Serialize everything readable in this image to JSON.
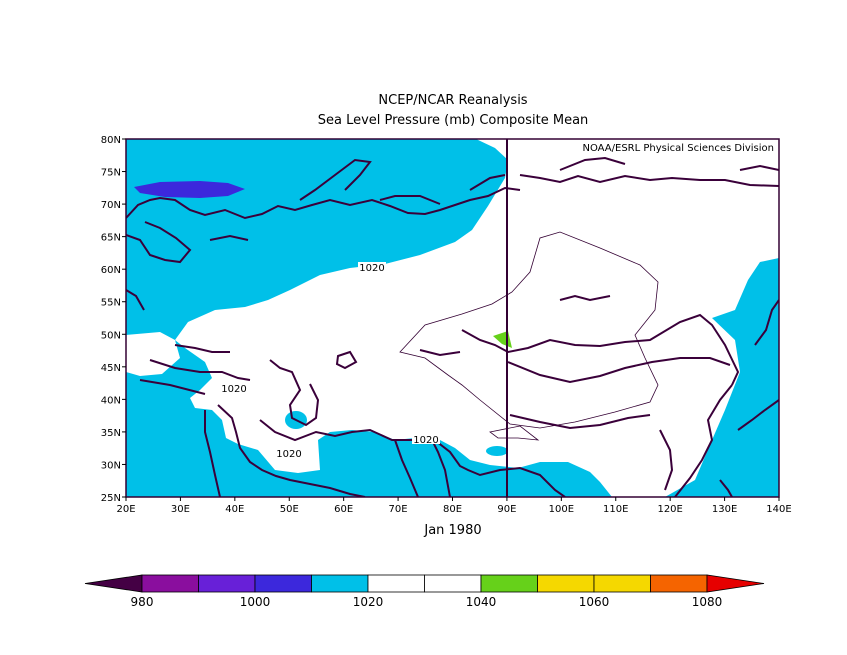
{
  "title": "NCEP/NCAR Reanalysis",
  "subtitle": "Sea Level Pressure (mb) Composite Mean",
  "credit": "NOAA/ESRL Physical Sciences Division",
  "period_label": "Jan 1980",
  "map": {
    "lon_range": [
      20,
      140
    ],
    "lat_range": [
      25,
      80
    ],
    "lon_ticks": [
      "20E",
      "30E",
      "40E",
      "50E",
      "60E",
      "70E",
      "80E",
      "90E",
      "100E",
      "110E",
      "120E",
      "130E",
      "140E"
    ],
    "lat_ticks": [
      "25N",
      "30N",
      "35N",
      "40N",
      "45N",
      "50N",
      "55N",
      "60N",
      "65N",
      "70N",
      "75N",
      "80N"
    ],
    "contour_labels": [
      "1020",
      "1020",
      "1020",
      "1020"
    ],
    "colors": {
      "fill_1010_1020": "#00c0e8",
      "fill_1020_1040": "#ffffff",
      "fill_1040_1050": "#66d11a",
      "fill_1000_1010": "#3c28dc",
      "coast": "#3a003a",
      "frame": "#330033"
    }
  },
  "colorbar": {
    "labels": [
      "980",
      "1000",
      "1020",
      "1040",
      "1060",
      "1080"
    ],
    "colors": [
      "#440044",
      "#8a0e9e",
      "#6820d8",
      "#3c28dc",
      "#00c0e8",
      "#ffffff",
      "#ffffff",
      "#66d11a",
      "#f5d800",
      "#f5d800",
      "#f56400",
      "#e60000"
    ]
  }
}
